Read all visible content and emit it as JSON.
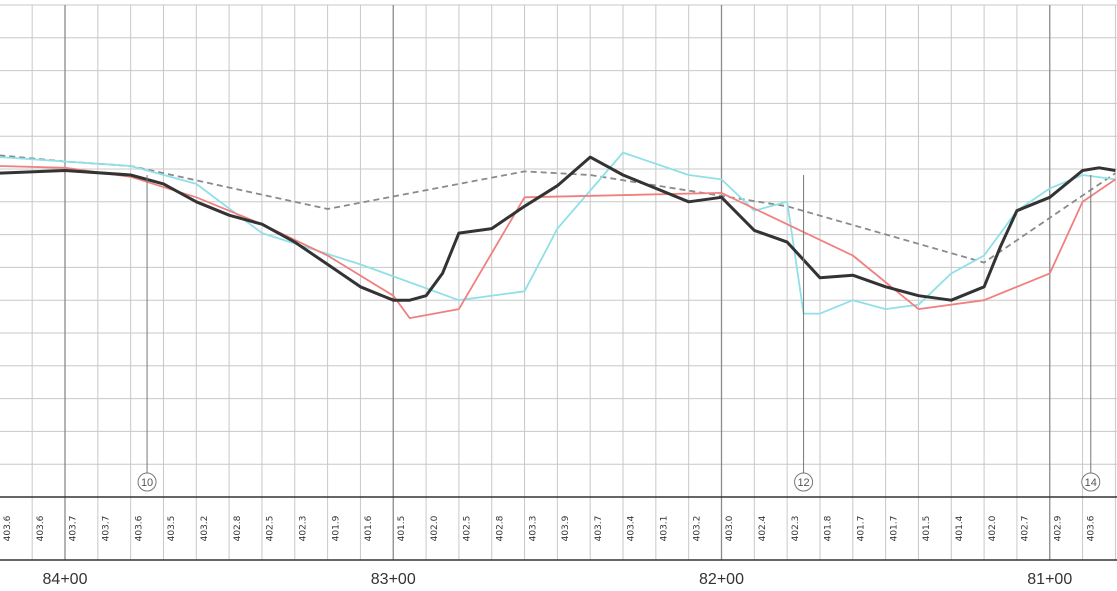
{
  "chart_data": {
    "type": "line",
    "x_axis_reversed": true,
    "stations": [
      {
        "label": "84+00",
        "value": 8400
      },
      {
        "label": "83+00",
        "value": 8300
      },
      {
        "label": "82+00",
        "value": 8200
      },
      {
        "label": "81+00",
        "value": 8100
      }
    ],
    "elevation_labels": {
      "stations": [
        8417.5,
        8407.5,
        8397.5,
        8387.5,
        8377.5,
        8367.5,
        8357.5,
        8347.5,
        8337.5,
        8327.5,
        8317.5,
        8307.5,
        8297.5,
        8287.5,
        8277.5,
        8267.5,
        8257.5,
        8247.5,
        8237.5,
        8227.5,
        8217.5,
        8207.5,
        8197.5,
        8187.5,
        8177.5,
        8167.5,
        8157.5,
        8147.5,
        8137.5,
        8127.5,
        8117.5,
        8107.5,
        8097.5,
        8087.5
      ],
      "values": [
        "403.6",
        "403.6",
        "403.7",
        "403.7",
        "403.6",
        "403.5",
        "403.2",
        "402.8",
        "402.5",
        "402.3",
        "401.9",
        "401.6",
        "401.5",
        "402.0",
        "402.5",
        "402.8",
        "403.3",
        "403.9",
        "403.7",
        "403.4",
        "403.1",
        "403.2",
        "403.0",
        "402.4",
        "402.3",
        "401.8",
        "401.7",
        "401.7",
        "401.5",
        "401.4",
        "402.0",
        "402.7",
        "402.9",
        "403.6"
      ]
    },
    "ylim": [
      400.0,
      405.5
    ],
    "grid": true,
    "series": [
      {
        "color": "#8a8a8a",
        "style": "dashed",
        "x": [
          8420,
          8400,
          8380,
          8320,
          8260,
          8240,
          8180,
          8120,
          8080
        ],
        "y": [
          403.82,
          403.75,
          403.7,
          403.22,
          403.64,
          403.6,
          403.25,
          402.62,
          403.62
        ]
      },
      {
        "color": "#90e0e8",
        "style": "solid",
        "x": [
          8420,
          8400,
          8380,
          8360,
          8340,
          8310,
          8280,
          8260,
          8250,
          8230,
          8210,
          8200,
          8190,
          8180,
          8175,
          8170,
          8160,
          8150,
          8140,
          8130,
          8120,
          8110,
          8100,
          8090,
          8080
        ],
        "y": [
          403.8,
          403.75,
          403.7,
          403.5,
          402.95,
          402.6,
          402.2,
          402.3,
          403.0,
          403.85,
          403.6,
          403.55,
          403.2,
          403.3,
          402.05,
          402.05,
          402.2,
          402.1,
          402.15,
          402.5,
          402.7,
          403.2,
          403.45,
          403.6,
          403.55
        ]
      },
      {
        "color": "#f08080",
        "style": "solid",
        "x": [
          8420,
          8400,
          8380,
          8360,
          8340,
          8320,
          8300,
          8295,
          8280,
          8260,
          8200,
          8160,
          8140,
          8120,
          8100,
          8090,
          8080
        ],
        "y": [
          403.7,
          403.68,
          403.58,
          403.35,
          403.05,
          402.7,
          402.25,
          402.0,
          402.1,
          403.35,
          403.4,
          402.7,
          402.1,
          402.2,
          402.5,
          403.3,
          403.55
        ]
      },
      {
        "color": "#333333",
        "style": "solid",
        "bold": true,
        "x": [
          8420,
          8400,
          8380,
          8370,
          8360,
          8350,
          8340,
          8330,
          8320,
          8310,
          8300,
          8295,
          8290,
          8285,
          8280,
          8270,
          8260,
          8250,
          8240,
          8230,
          8220,
          8210,
          8200,
          8190,
          8180,
          8170,
          8160,
          8150,
          8140,
          8130,
          8120,
          8115,
          8110,
          8100,
          8090,
          8085,
          8080
        ],
        "y": [
          403.62,
          403.65,
          403.6,
          403.5,
          403.3,
          403.15,
          403.05,
          402.85,
          402.6,
          402.35,
          402.2,
          402.2,
          402.25,
          402.5,
          402.95,
          403.0,
          403.25,
          403.48,
          403.8,
          403.6,
          403.45,
          403.3,
          403.35,
          402.98,
          402.85,
          402.45,
          402.48,
          402.35,
          402.25,
          402.2,
          402.35,
          402.8,
          403.2,
          403.35,
          403.65,
          403.68,
          403.65
        ]
      }
    ],
    "markers": [
      {
        "label": "10",
        "station": 8375
      },
      {
        "label": "12",
        "station": 8175
      },
      {
        "label": "14",
        "station": 8087.5
      }
    ]
  }
}
